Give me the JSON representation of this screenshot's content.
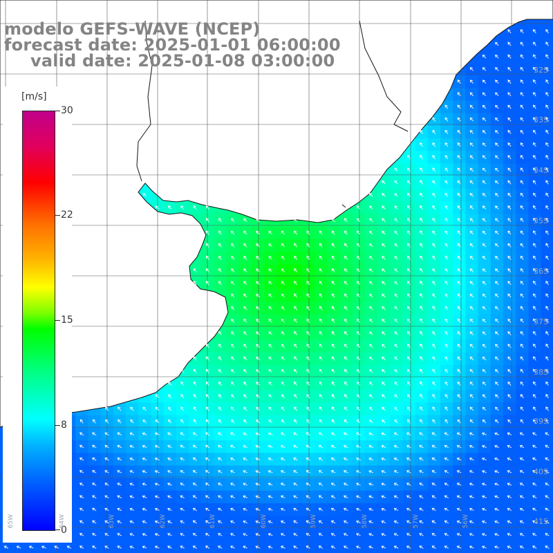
{
  "title": {
    "line1": "modelo GEFS-WAVE (NCEP)",
    "line2": "forecast date: 2025-01-01 06:00:00",
    "line3": "valid date: 2025-01-08 03:00:00"
  },
  "colorbar": {
    "unit": "[m/s]",
    "ticks": [
      "30",
      "22",
      "15",
      "8",
      "0"
    ],
    "colors": [
      "#0000ff",
      "#00ffff",
      "#00ff00",
      "#ffff00",
      "#ff0000",
      "#c0008a"
    ]
  },
  "lat_labels": [
    "32S",
    "33S",
    "34S",
    "35S",
    "36S",
    "37S",
    "38S",
    "39S",
    "40S",
    "41S"
  ],
  "lon_labels": [
    "65W",
    "64W",
    "63W",
    "62W",
    "61W",
    "60W",
    "59W",
    "58W",
    "57W",
    "56W"
  ],
  "map": {
    "field": "wind speed with direction arrows",
    "land_color": "#ffffff",
    "grid_color": "#555555"
  }
}
